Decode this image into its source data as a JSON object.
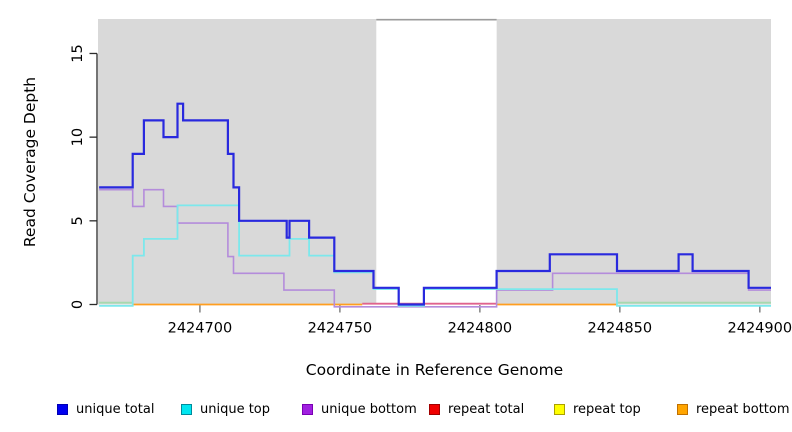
{
  "figure": {
    "xlabel": "Coordinate in Reference Genome",
    "ylabel": "Read Coverage Depth",
    "background_color": "#ffffff",
    "panel_color": "#d9d9d9",
    "gap_band_color": "#ffffff",
    "gap_band_top_border_color": "#9b9b9b",
    "y_axis_color": "#2a2a2a",
    "x_tick_color": "#8a8a8a",
    "tick_label_color": "#000000"
  },
  "chart_data": {
    "type": "line",
    "title": "",
    "xlabel": "Coordinate in Reference Genome",
    "ylabel": "Read Coverage Depth",
    "xlim": [
      2424663.6,
      2424904
    ],
    "ylim": [
      0,
      17
    ],
    "x_ticks": [
      2424700,
      2424750,
      2424800,
      2424850,
      2424900
    ],
    "y_ticks": [
      0,
      5,
      10,
      15
    ],
    "grid": false,
    "legend_position": "bottom",
    "gap_band": {
      "from": 2424763,
      "to": 2424806
    },
    "series": [
      {
        "name": "unique total",
        "color": "#2929de",
        "step_points": [
          [
            2424664,
            7
          ],
          [
            2424676,
            9
          ],
          [
            2424680,
            11
          ],
          [
            2424687,
            10
          ],
          [
            2424692,
            12
          ],
          [
            2424694,
            11
          ],
          [
            2424710,
            9
          ],
          [
            2424712,
            7
          ],
          [
            2424714,
            5
          ],
          [
            2424731,
            4
          ],
          [
            2424732,
            5
          ],
          [
            2424739,
            4
          ],
          [
            2424748,
            2
          ],
          [
            2424762,
            1
          ],
          [
            2424771,
            0
          ],
          [
            2424780,
            1
          ],
          [
            2424806,
            2
          ],
          [
            2424825,
            3
          ],
          [
            2424849,
            2
          ],
          [
            2424871,
            3
          ],
          [
            2424876,
            2
          ],
          [
            2424896,
            1
          ]
        ],
        "end_x": 2424904
      },
      {
        "name": "unique top",
        "color": "#7ce8ec",
        "step_points": [
          [
            2424664,
            0
          ],
          [
            2424676,
            3
          ],
          [
            2424680,
            4
          ],
          [
            2424692,
            6
          ],
          [
            2424714,
            3
          ],
          [
            2424732,
            4
          ],
          [
            2424739,
            3
          ],
          [
            2424748,
            2
          ],
          [
            2424762,
            1
          ],
          [
            2424771,
            0
          ],
          [
            2424780,
            1
          ],
          [
            2424849,
            0
          ]
        ],
        "end_x": 2424904
      },
      {
        "name": "unique bottom",
        "color": "#b48cdb",
        "step_points": [
          [
            2424664,
            7
          ],
          [
            2424676,
            6
          ],
          [
            2424680,
            7
          ],
          [
            2424687,
            6
          ],
          [
            2424692,
            5
          ],
          [
            2424710,
            3
          ],
          [
            2424712,
            2
          ],
          [
            2424730,
            1
          ],
          [
            2424748,
            0
          ],
          [
            2424806,
            1
          ],
          [
            2424826,
            2
          ],
          [
            2424896,
            1
          ]
        ],
        "end_x": 2424904
      },
      {
        "name": "repeat total",
        "color": "#e0638e",
        "step_points": [
          [
            2424664,
            0
          ]
        ],
        "end_x": 2424904
      },
      {
        "name": "repeat top",
        "color": "#f5f500",
        "step_points": [
          [
            2424664,
            0
          ]
        ],
        "end_x": 2424904
      },
      {
        "name": "repeat bottom",
        "color": "#ff9e1f",
        "step_points": [
          [
            2424664,
            0
          ]
        ],
        "end_x": 2424904
      }
    ],
    "baseline_segments": [
      {
        "from": 2424664,
        "to": 2424676,
        "color": "#a6d9ae",
        "dy": -1
      },
      {
        "from": 2424676,
        "to": 2424758,
        "color": "#ff9e1f",
        "dy": 0.8
      },
      {
        "from": 2424758,
        "to": 2424806,
        "color": "#e0638e",
        "dy": 0
      },
      {
        "from": 2424806,
        "to": 2424849,
        "color": "#ff9e1f",
        "dy": 0.8
      },
      {
        "from": 2424849,
        "to": 2424904,
        "color": "#a6d9ae",
        "dy": -1
      }
    ]
  },
  "legend": {
    "items": [
      {
        "label": "unique total",
        "swatch": "#0000f0",
        "border": "#0000b4"
      },
      {
        "label": "unique top",
        "swatch": "#00e6f0",
        "border": "#008b9b"
      },
      {
        "label": "unique bottom",
        "swatch": "#a020e0",
        "border": "#7a00b4"
      },
      {
        "label": "repeat total",
        "swatch": "#f00000",
        "border": "#a00000"
      },
      {
        "label": "repeat top",
        "swatch": "#ffff00",
        "border": "#aba000"
      },
      {
        "label": "repeat bottom",
        "swatch": "#ffa500",
        "border": "#c07000"
      }
    ]
  }
}
